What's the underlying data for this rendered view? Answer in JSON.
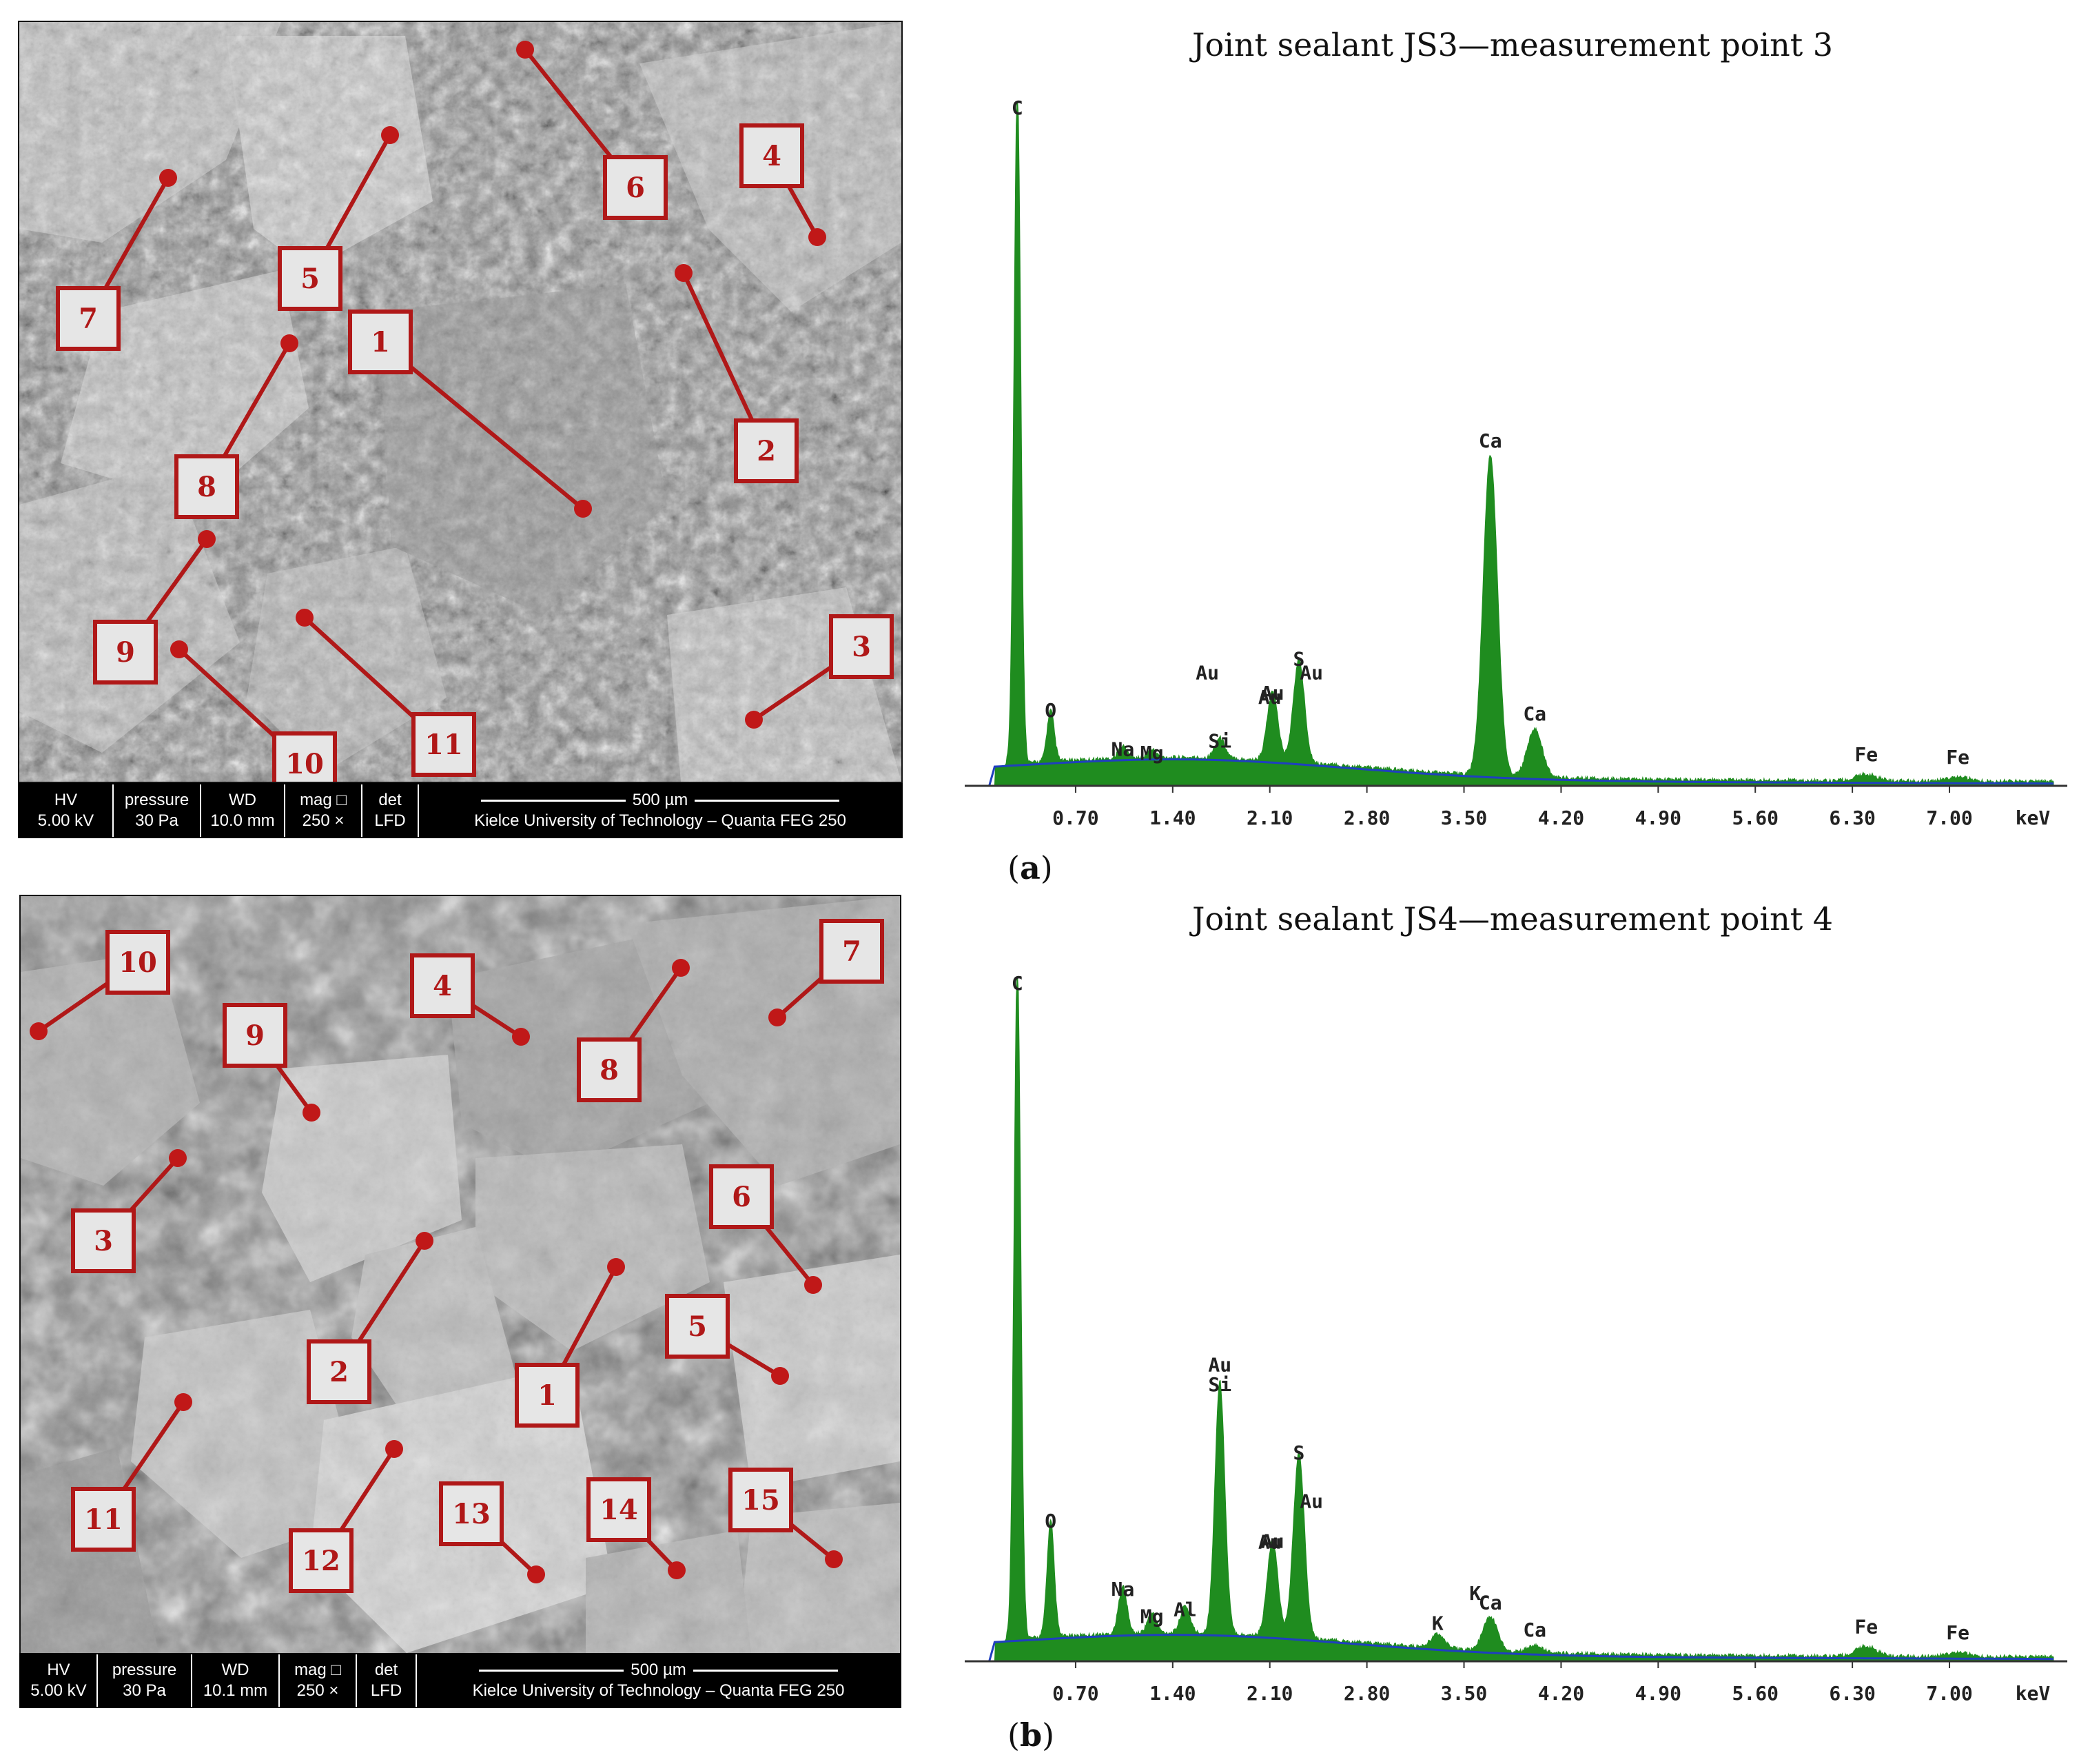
{
  "panels": [
    {
      "label_open": "(",
      "label_letter": "a",
      "label_close": ")",
      "sem": {
        "bar": {
          "hv_label": "HV",
          "hv_value": "5.00 kV",
          "pressure_label": "pressure",
          "pressure_value": "30 Pa",
          "wd_label": "WD",
          "wd_value": "10.0 mm",
          "mag_label": "mag □",
          "mag_value": "250 ×",
          "det_label": "det",
          "det_value": "LFD",
          "scale": "500 µm",
          "institution": "Kielce University of Technology – Quanta FEG 250"
        },
        "points": [
          "1",
          "2",
          "3",
          "4",
          "5",
          "6",
          "7",
          "8",
          "9",
          "10",
          "11"
        ]
      },
      "chart_data": {
        "type": "area",
        "title": "Joint sealant JS3—measurement point 3",
        "xlabel": "keV",
        "xlim": [
          0,
          7.75
        ],
        "ylim": [
          0,
          1.0
        ],
        "x_ticks": [
          "0.70",
          "1.40",
          "2.10",
          "2.80",
          "3.50",
          "4.20",
          "4.90",
          "5.60",
          "6.30",
          "7.00"
        ],
        "x_tick_values": [
          0.7,
          1.4,
          2.1,
          2.8,
          3.5,
          4.2,
          4.9,
          5.6,
          6.3,
          7.0
        ],
        "grid": false,
        "peaks": [
          {
            "element": "C",
            "x": 0.28,
            "height": 1.0,
            "label": "C"
          },
          {
            "element": "O",
            "x": 0.52,
            "height": 0.075,
            "label": "O"
          },
          {
            "element": "Na",
            "x": 1.04,
            "height": 0.018,
            "label": "Na"
          },
          {
            "element": "Mg",
            "x": 1.25,
            "height": 0.012,
            "label": "Mg"
          },
          {
            "element": "Si",
            "x": 1.74,
            "height": 0.03,
            "label": "Si"
          },
          {
            "element": "Au",
            "x": 2.12,
            "height": 0.1,
            "label": "Au"
          },
          {
            "element": "S",
            "x": 2.31,
            "height": 0.15,
            "label": "S"
          },
          {
            "element": "Ca",
            "x": 3.69,
            "height": 0.47,
            "label": "Ca"
          },
          {
            "element": "Ca",
            "x": 4.01,
            "height": 0.07,
            "label": "Ca"
          },
          {
            "element": "Fe",
            "x": 6.4,
            "height": 0.01,
            "label": "Fe"
          },
          {
            "element": "Fe",
            "x": 7.06,
            "height": 0.006,
            "label": "Fe"
          }
        ],
        "extra_labels": [
          {
            "label": "Au",
            "x": 1.65,
            "y": 0.156
          },
          {
            "label": "Au",
            "x": 2.1,
            "y": 0.12
          },
          {
            "label": "Au",
            "x": 2.4,
            "y": 0.156
          }
        ],
        "colors": {
          "fill": "#1f8c1f",
          "baseline": "#1f3fbf"
        }
      }
    },
    {
      "label_open": "(",
      "label_letter": "b",
      "label_close": ")",
      "sem": {
        "bar": {
          "hv_label": "HV",
          "hv_value": "5.00 kV",
          "pressure_label": "pressure",
          "pressure_value": "30 Pa",
          "wd_label": "WD",
          "wd_value": "10.1 mm",
          "mag_label": "mag □",
          "mag_value": "250 ×",
          "det_label": "det",
          "det_value": "LFD",
          "scale": "500 µm",
          "institution": "Kielce University of Technology – Quanta FEG 250"
        },
        "points": [
          "1",
          "2",
          "3",
          "4",
          "5",
          "6",
          "7",
          "8",
          "9",
          "10",
          "11",
          "12",
          "13",
          "14",
          "15"
        ]
      },
      "chart_data": {
        "type": "area",
        "title": "Joint sealant JS4—measurement point 4",
        "xlabel": "keV",
        "xlim": [
          0,
          7.75
        ],
        "ylim": [
          0,
          1.0
        ],
        "x_ticks": [
          "0.70",
          "1.40",
          "2.10",
          "2.80",
          "3.50",
          "4.20",
          "4.90",
          "5.60",
          "6.30",
          "7.00"
        ],
        "x_tick_values": [
          0.7,
          1.4,
          2.1,
          2.8,
          3.5,
          4.2,
          4.9,
          5.6,
          6.3,
          7.0
        ],
        "grid": false,
        "peaks": [
          {
            "element": "C",
            "x": 0.28,
            "height": 1.0,
            "label": "C"
          },
          {
            "element": "O",
            "x": 0.52,
            "height": 0.17,
            "label": "O"
          },
          {
            "element": "Na",
            "x": 1.04,
            "height": 0.07,
            "label": "Na"
          },
          {
            "element": "Mg",
            "x": 1.25,
            "height": 0.03,
            "label": "Mg"
          },
          {
            "element": "Al",
            "x": 1.49,
            "height": 0.04,
            "label": "Al"
          },
          {
            "element": "Si",
            "x": 1.74,
            "height": 0.37,
            "label": "Si"
          },
          {
            "element": "Au",
            "x": 2.12,
            "height": 0.14,
            "label": "Au"
          },
          {
            "element": "S",
            "x": 2.31,
            "height": 0.27,
            "label": "S"
          },
          {
            "element": "K",
            "x": 3.31,
            "height": 0.02,
            "label": "K"
          },
          {
            "element": "Ca",
            "x": 3.69,
            "height": 0.05,
            "label": "Ca"
          },
          {
            "element": "Ca",
            "x": 4.01,
            "height": 0.01,
            "label": "Ca"
          },
          {
            "element": "Fe",
            "x": 6.4,
            "height": 0.015,
            "label": "Fe"
          },
          {
            "element": "Fe",
            "x": 7.06,
            "height": 0.006,
            "label": "Fe"
          }
        ],
        "extra_labels": [
          {
            "label": "Au",
            "x": 1.74,
            "y": 0.425
          },
          {
            "label": "Au",
            "x": 2.1,
            "y": 0.165
          },
          {
            "label": "Au",
            "x": 2.4,
            "y": 0.225
          },
          {
            "label": "K",
            "x": 3.58,
            "y": 0.09
          }
        ],
        "colors": {
          "fill": "#1f8c1f",
          "baseline": "#1f3fbf"
        }
      }
    }
  ]
}
